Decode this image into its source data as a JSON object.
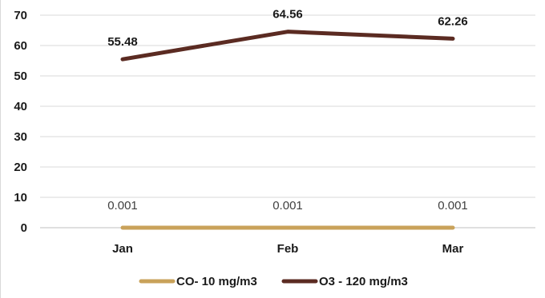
{
  "chart_data": {
    "type": "line",
    "categories": [
      "Jan",
      "Feb",
      "Mar"
    ],
    "ylim": [
      0,
      70
    ],
    "yticks": [
      0,
      10,
      20,
      30,
      40,
      50,
      60,
      70
    ],
    "grid": true,
    "legend": "bottom",
    "series": [
      {
        "name": "CO- 10 mg/m3",
        "values": [
          0.001,
          0.001,
          0.001
        ],
        "labels": [
          "0.001",
          "0.001",
          "0.001"
        ],
        "color": "#c9a25a"
      },
      {
        "name": "O3 - 120 mg/m3",
        "values": [
          55.48,
          64.56,
          62.26
        ],
        "labels": [
          "55.48",
          "64.56",
          "62.26"
        ],
        "color": "#5b2b22"
      }
    ],
    "title": "",
    "xlabel": "",
    "ylabel": ""
  }
}
